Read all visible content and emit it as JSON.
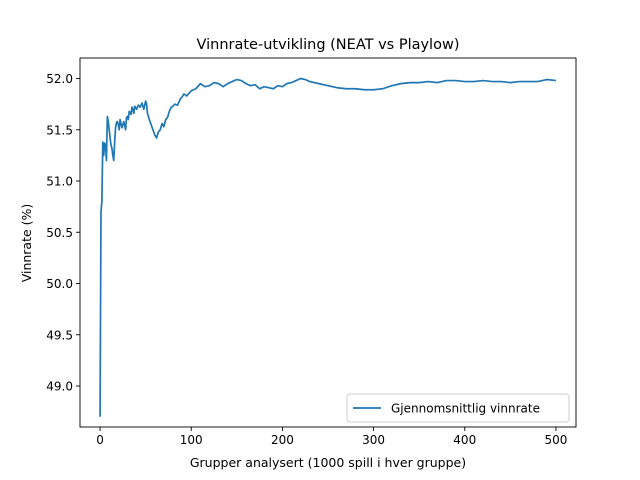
{
  "chart_data": {
    "type": "line",
    "title": "Vinnrate-utvikling (NEAT vs Playlow)",
    "xlabel": "Grupper analysert (1000 spill i hver gruppe)",
    "ylabel": "Vinnrate (%)",
    "xlim": [
      -22,
      522
    ],
    "ylim": [
      48.6,
      52.2
    ],
    "xticks": [
      0,
      100,
      200,
      300,
      400,
      500
    ],
    "yticks": [
      49.0,
      49.5,
      50.0,
      50.5,
      51.0,
      51.5,
      52.0
    ],
    "grid": false,
    "legend_position": "lower right",
    "series": [
      {
        "name": "Gjennomsnittlig vinnrate",
        "color": "#1f77b4",
        "x": [
          0,
          1,
          2,
          3,
          4,
          5,
          6,
          7,
          8,
          9,
          10,
          11,
          12,
          13,
          14,
          15,
          16,
          17,
          18,
          19,
          20,
          21,
          22,
          24,
          26,
          28,
          29,
          30,
          31,
          32,
          34,
          35,
          36,
          37,
          38,
          40,
          42,
          44,
          46,
          48,
          50,
          51,
          52,
          54,
          56,
          58,
          60,
          62,
          64,
          66,
          68,
          70,
          72,
          74,
          76,
          78,
          80,
          82,
          85,
          88,
          90,
          92,
          95,
          100,
          105,
          110,
          115,
          120,
          125,
          130,
          135,
          140,
          145,
          150,
          155,
          160,
          165,
          170,
          175,
          180,
          185,
          190,
          195,
          200,
          205,
          210,
          215,
          220,
          225,
          230,
          240,
          250,
          260,
          270,
          280,
          290,
          300,
          310,
          320,
          330,
          340,
          350,
          360,
          370,
          380,
          390,
          400,
          410,
          420,
          430,
          440,
          450,
          460,
          470,
          480,
          490,
          500
        ],
        "y": [
          48.7,
          50.7,
          50.8,
          51.38,
          51.25,
          51.37,
          51.35,
          51.2,
          51.63,
          51.58,
          51.5,
          51.42,
          51.35,
          51.32,
          51.25,
          51.2,
          51.38,
          51.52,
          51.57,
          51.58,
          51.55,
          51.5,
          51.6,
          51.52,
          51.58,
          51.5,
          51.62,
          51.63,
          51.6,
          51.68,
          51.65,
          51.72,
          51.7,
          51.66,
          51.73,
          51.7,
          51.74,
          51.72,
          51.76,
          51.7,
          51.78,
          51.75,
          51.66,
          51.6,
          51.55,
          51.5,
          51.45,
          51.42,
          51.48,
          51.5,
          51.56,
          51.53,
          51.6,
          51.62,
          51.68,
          51.72,
          51.73,
          51.75,
          51.74,
          51.8,
          51.82,
          51.85,
          51.83,
          51.88,
          51.9,
          51.95,
          51.92,
          51.93,
          51.96,
          51.95,
          51.92,
          51.95,
          51.97,
          51.99,
          51.98,
          51.95,
          51.93,
          51.94,
          51.9,
          51.92,
          51.91,
          51.9,
          51.93,
          51.92,
          51.95,
          51.96,
          51.98,
          52.0,
          51.99,
          51.97,
          51.95,
          51.93,
          51.91,
          51.9,
          51.9,
          51.89,
          51.89,
          51.9,
          51.93,
          51.95,
          51.96,
          51.96,
          51.97,
          51.96,
          51.98,
          51.98,
          51.97,
          51.97,
          51.98,
          51.97,
          51.97,
          51.96,
          51.97,
          51.97,
          51.97,
          51.99,
          51.98
        ]
      }
    ]
  }
}
